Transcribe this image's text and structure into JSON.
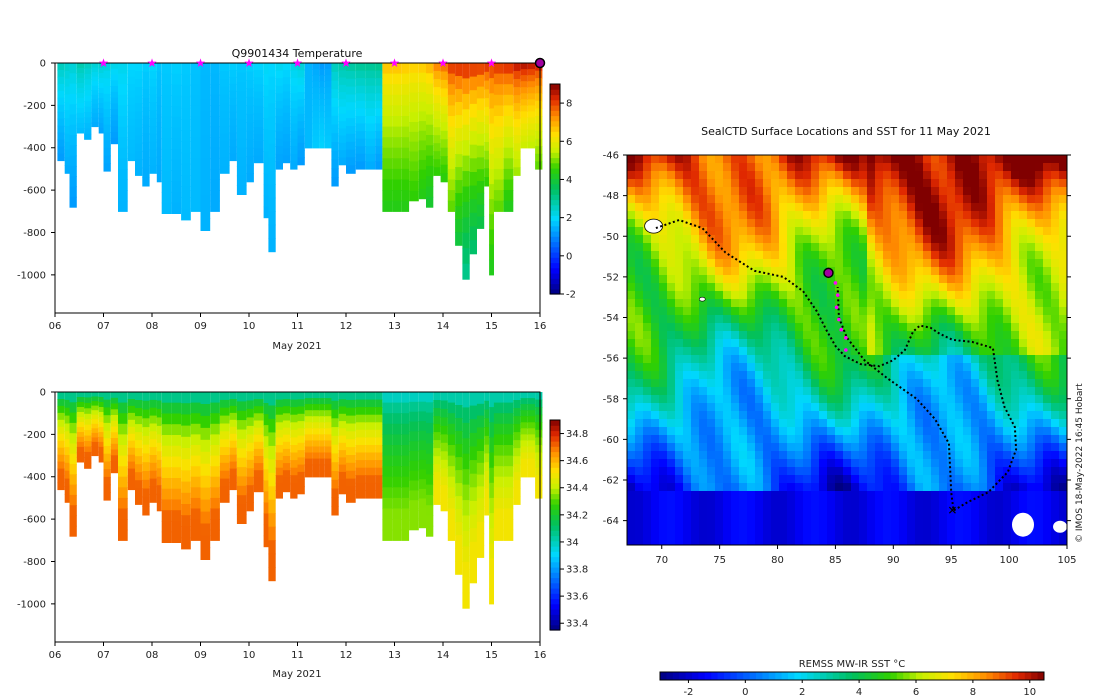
{
  "chart_data": [
    {
      "type": "heatmap",
      "panel": "temperature-section",
      "title": "Q9901434  Temperature",
      "xlabel": "May 2021",
      "ylabel": "",
      "x_ticks": [
        "06",
        "07",
        "08",
        "09",
        "10",
        "11",
        "12",
        "13",
        "14",
        "15",
        "16"
      ],
      "xlim": [
        6,
        16
      ],
      "y_ticks": [
        0,
        -200,
        -400,
        -600,
        -800,
        -1000
      ],
      "ylim": [
        -1180,
        0
      ],
      "colorbar": {
        "ticks": [
          8,
          6,
          4,
          2,
          0,
          -2
        ],
        "range": [
          -2,
          9
        ]
      },
      "profile_markers_day": [
        7,
        8,
        9,
        10,
        11,
        12,
        13,
        14,
        15
      ],
      "current_marker_day": 16,
      "profiles": [
        [
          6.05,
          460,
          2.8,
          1.2
        ],
        [
          6.2,
          520,
          2.6,
          1.4
        ],
        [
          6.3,
          680,
          2.5,
          1.2
        ],
        [
          6.45,
          330,
          2.9,
          1.6
        ],
        [
          6.6,
          360,
          2.7,
          1.5
        ],
        [
          6.75,
          300,
          2.5,
          1.4
        ],
        [
          6.9,
          330,
          2.6,
          1.3
        ],
        [
          7.0,
          510,
          2.4,
          1.3
        ],
        [
          7.15,
          380,
          2.3,
          1.2
        ],
        [
          7.3,
          700,
          2.2,
          1.5
        ],
        [
          7.5,
          460,
          2.0,
          1.6
        ],
        [
          7.65,
          530,
          2.0,
          1.5
        ],
        [
          7.8,
          580,
          1.9,
          1.4
        ],
        [
          7.95,
          520,
          2.0,
          1.5
        ],
        [
          8.1,
          560,
          1.8,
          1.4
        ],
        [
          8.2,
          710,
          1.8,
          1.6
        ],
        [
          8.4,
          710,
          1.9,
          1.5
        ],
        [
          8.6,
          740,
          1.8,
          1.6
        ],
        [
          8.8,
          700,
          1.7,
          1.6
        ],
        [
          9.0,
          790,
          1.6,
          1.5
        ],
        [
          9.2,
          700,
          1.6,
          1.4
        ],
        [
          9.4,
          520,
          1.8,
          1.5
        ],
        [
          9.6,
          460,
          1.9,
          1.4
        ],
        [
          9.75,
          620,
          1.8,
          1.5
        ],
        [
          9.95,
          560,
          1.9,
          1.4
        ],
        [
          10.1,
          470,
          2.0,
          1.4
        ],
        [
          10.3,
          730,
          2.1,
          1.5
        ],
        [
          10.4,
          890,
          2.0,
          1.5
        ],
        [
          10.55,
          500,
          2.2,
          1.3
        ],
        [
          10.7,
          470,
          2.1,
          1.3
        ],
        [
          10.85,
          500,
          2.3,
          1.4
        ],
        [
          11.0,
          480,
          2.5,
          1.2
        ],
        [
          11.15,
          400,
          1.5,
          1.6
        ],
        [
          11.3,
          400,
          1.3,
          1.8
        ],
        [
          11.45,
          400,
          1.1,
          1.9
        ],
        [
          11.55,
          400,
          1.2,
          1.8
        ],
        [
          11.7,
          580,
          2.8,
          1.2
        ],
        [
          11.85,
          480,
          3.0,
          1.4
        ],
        [
          12.0,
          520,
          3.1,
          1.2
        ],
        [
          12.2,
          500,
          3.2,
          1.2
        ],
        [
          12.4,
          500,
          3.2,
          1.4
        ],
        [
          12.6,
          500,
          3.3,
          1.2
        ],
        [
          12.75,
          700,
          7.0,
          4.3
        ],
        [
          12.95,
          700,
          7.0,
          4.3
        ],
        [
          13.15,
          700,
          6.9,
          4.3
        ],
        [
          13.3,
          650,
          6.8,
          4.5
        ],
        [
          13.5,
          640,
          6.9,
          4.3
        ],
        [
          13.65,
          680,
          7.2,
          4.0
        ],
        [
          13.8,
          530,
          7.8,
          4.5
        ],
        [
          13.95,
          560,
          8.0,
          4.4
        ],
        [
          14.1,
          700,
          8.5,
          4.8
        ],
        [
          14.25,
          860,
          8.7,
          3.8
        ],
        [
          14.4,
          1020,
          8.8,
          3.0
        ],
        [
          14.55,
          900,
          8.7,
          3.3
        ],
        [
          14.7,
          780,
          8.6,
          3.7
        ],
        [
          14.85,
          580,
          8.6,
          4.5
        ],
        [
          14.95,
          1000,
          8.4,
          4.2
        ],
        [
          15.05,
          700,
          8.5,
          4.8
        ],
        [
          15.25,
          700,
          8.7,
          4.2
        ],
        [
          15.45,
          530,
          8.9,
          5.2
        ],
        [
          15.6,
          400,
          9.0,
          5.5
        ],
        [
          15.75,
          400,
          8.9,
          5.4
        ],
        [
          15.9,
          500,
          8.8,
          4.8
        ]
      ]
    },
    {
      "type": "heatmap",
      "panel": "salinity-section",
      "title": "",
      "xlabel": "May 2021",
      "x_ticks": [
        "06",
        "07",
        "08",
        "09",
        "10",
        "11",
        "12",
        "13",
        "14",
        "15",
        "16"
      ],
      "xlim": [
        6,
        16
      ],
      "y_ticks": [
        0,
        -200,
        -400,
        -600,
        -800,
        -1000
      ],
      "ylim": [
        -1180,
        0
      ],
      "colorbar": {
        "ticks": [
          34.8,
          34.6,
          34.4,
          34.2,
          34,
          33.8,
          33.6,
          33.4
        ],
        "range": [
          33.35,
          34.9
        ]
      },
      "note": "same profile columns as the temperature panel",
      "surface_salinity": 33.9,
      "bottom_salinity_by_segment": [
        {
          "from": 6.0,
          "to": 12.7,
          "value": 34.72
        },
        {
          "from": 12.7,
          "to": 13.7,
          "value": 34.35
        },
        {
          "from": 13.7,
          "to": 16.0,
          "value": 34.5
        }
      ]
    },
    {
      "type": "heatmap",
      "panel": "sst-map",
      "title": "SealCTD Surface Locations and SST for 11 May 2021",
      "xlabel": "",
      "x_ticks": [
        70,
        75,
        80,
        85,
        90,
        95,
        100,
        105
      ],
      "xlim": [
        67,
        105
      ],
      "y_ticks": [
        -46,
        -48,
        -50,
        -52,
        -54,
        -56,
        -58,
        -60,
        -62,
        -64
      ],
      "ylim": [
        -65.2,
        -46
      ],
      "colorbar": {
        "label": "REMSS MW-IR SST °C",
        "ticks": [
          -2,
          0,
          2,
          4,
          6,
          8,
          10
        ],
        "range": [
          -3,
          10.5
        ]
      },
      "track_lon_lat": [
        [
          69.5,
          -49.6
        ],
        [
          71.5,
          -49.2
        ],
        [
          73.5,
          -49.6
        ],
        [
          75.5,
          -50.8
        ],
        [
          78.0,
          -51.7
        ],
        [
          80.5,
          -52.0
        ],
        [
          82.2,
          -52.7
        ],
        [
          83.4,
          -53.7
        ],
        [
          84.2,
          -54.6
        ],
        [
          85.0,
          -55.4
        ],
        [
          85.8,
          -55.9
        ],
        [
          87.2,
          -56.3
        ],
        [
          88.8,
          -56.4
        ],
        [
          90.0,
          -56.1
        ],
        [
          91.0,
          -55.6
        ],
        [
          91.7,
          -54.7
        ],
        [
          92.3,
          -54.4
        ],
        [
          93.2,
          -54.5
        ],
        [
          94.0,
          -54.8
        ],
        [
          95.1,
          -55.1
        ],
        [
          96.8,
          -55.2
        ],
        [
          98.6,
          -55.5
        ],
        [
          99.0,
          -57.1
        ],
        [
          99.6,
          -58.4
        ],
        [
          100.5,
          -59.4
        ],
        [
          100.6,
          -60.5
        ],
        [
          99.9,
          -61.6
        ],
        [
          98.2,
          -62.6
        ],
        [
          96.4,
          -63.1
        ],
        [
          95.2,
          -63.5
        ],
        [
          95.0,
          -62.6
        ],
        [
          94.9,
          -61.4
        ],
        [
          94.8,
          -60.2
        ],
        [
          93.6,
          -59.0
        ],
        [
          92.0,
          -58.0
        ],
        [
          89.5,
          -57.0
        ],
        [
          87.5,
          -56.1
        ],
        [
          86.0,
          -55.0
        ],
        [
          85.3,
          -54.0
        ],
        [
          85.2,
          -52.5
        ]
      ],
      "magenta_profile_lon_lat": [
        [
          85.0,
          -52.3
        ],
        [
          85.2,
          -52.9
        ],
        [
          85.1,
          -53.5
        ],
        [
          85.3,
          -54.1
        ],
        [
          85.5,
          -54.6
        ],
        [
          85.9,
          -55.0
        ],
        [
          85.9,
          -55.6
        ]
      ],
      "current_position_lon_lat": [
        84.4,
        -51.8
      ],
      "start_position_lon_lat": [
        95.1,
        -63.5
      ]
    }
  ],
  "credit": "© IMOS 18-May-2022 16:45 Hobart"
}
